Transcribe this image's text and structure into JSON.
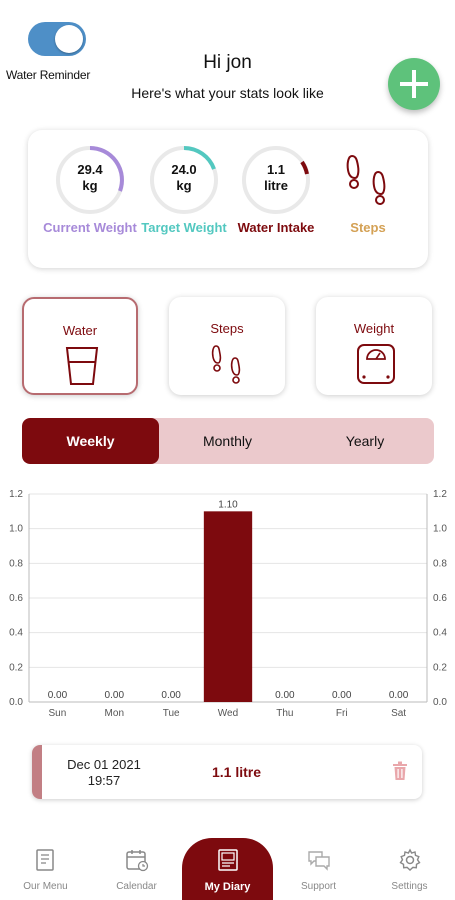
{
  "header": {
    "toggle_label": "Water Reminder",
    "toggle_on": true,
    "greeting": "Hi jon",
    "subtitle": "Here's what your stats look like",
    "add_icon": "plus-icon"
  },
  "stats": [
    {
      "value": "29.4",
      "unit": "kg",
      "label": "Current Weight",
      "color": "#a78ad9"
    },
    {
      "value": "24.0",
      "unit": "kg",
      "label": "Target Weight",
      "color": "#53c8c0"
    },
    {
      "value": "1.1",
      "unit": "litre",
      "label": "Water Intake",
      "color": "#7d0a0e"
    },
    {
      "label": "Steps",
      "color": "#d4a155",
      "icon": "footprints-icon"
    }
  ],
  "categories": [
    {
      "label": "Water",
      "icon": "glass-icon",
      "active": true
    },
    {
      "label": "Steps",
      "icon": "footprints-icon",
      "active": false
    },
    {
      "label": "Weight",
      "icon": "scale-icon",
      "active": false
    }
  ],
  "period_tabs": [
    "Weekly",
    "Monthly",
    "Yearly"
  ],
  "period_active": 0,
  "chart_data": {
    "type": "bar",
    "categories": [
      "Sun",
      "Mon",
      "Tue",
      "Wed",
      "Thu",
      "Fri",
      "Sat"
    ],
    "values": [
      0,
      0,
      0,
      1.1,
      0,
      0,
      0
    ],
    "value_labels": [
      "0.00",
      "0.00",
      "0.00",
      "1.10",
      "0.00",
      "0.00",
      "0.00"
    ],
    "yticks": [
      "0.0",
      "0.2",
      "0.4",
      "0.6",
      "0.8",
      "1.0",
      "1.2"
    ],
    "ylim": [
      0,
      1.2
    ],
    "grid": "horizontal",
    "bar_color": "#7d0a0e"
  },
  "entry": {
    "date": "Dec 01 2021",
    "time": "19:57",
    "value": "1.1 litre",
    "delete_icon": "trash-icon"
  },
  "nav": [
    {
      "label": "Our Menu",
      "icon": "menu-book-icon"
    },
    {
      "label": "Calendar",
      "icon": "calendar-icon"
    },
    {
      "label": "My Diary",
      "icon": "diary-icon"
    },
    {
      "label": "Support",
      "icon": "chat-icon"
    },
    {
      "label": "Settings",
      "icon": "gear-icon"
    }
  ],
  "nav_active": 2
}
